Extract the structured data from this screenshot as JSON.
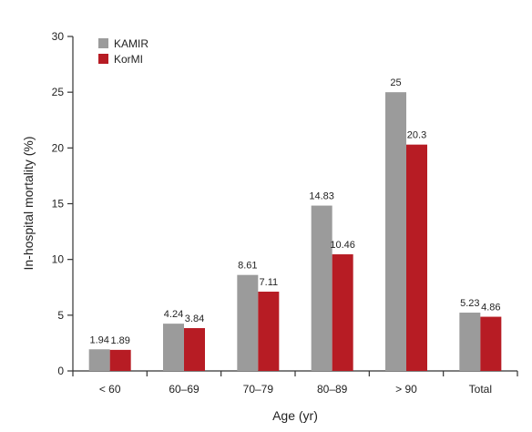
{
  "chart_data": {
    "type": "bar",
    "title": "",
    "xlabel": "Age (yr)",
    "ylabel": "In-hospital mortality   (%)",
    "ylim": [
      0,
      30
    ],
    "yticks": [
      0,
      5,
      10,
      15,
      20,
      25,
      30
    ],
    "grid": false,
    "legend_position": "top-left",
    "categories": [
      "< 60",
      "60–69",
      "70–79",
      "80–89",
      "> 90",
      "Total"
    ],
    "series": [
      {
        "name": "KAMIR",
        "color": "#9b9b9b",
        "values": [
          1.94,
          4.24,
          8.61,
          14.83,
          25,
          5.23
        ]
      },
      {
        "name": "KorMI",
        "color": "#b71c24",
        "values": [
          1.89,
          3.84,
          7.11,
          10.46,
          20.3,
          4.86
        ]
      }
    ]
  }
}
